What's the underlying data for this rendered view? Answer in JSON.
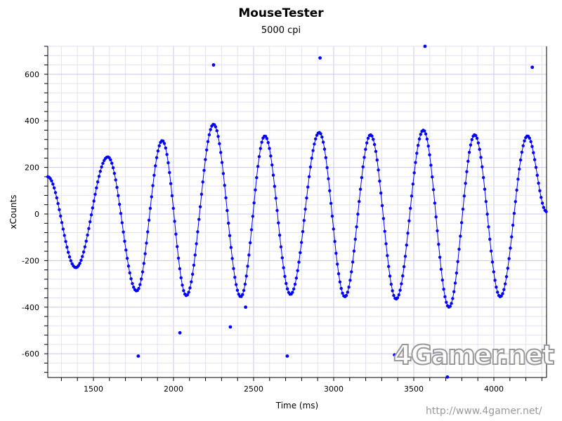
{
  "chart_data": {
    "type": "scatter",
    "title": "MouseTester",
    "subtitle": "5000 cpi",
    "xlabel": "Time (ms)",
    "ylabel": "xCounts",
    "xlim": [
      1215,
      4329
    ],
    "ylim": [
      -702,
      720
    ],
    "xticks": [
      1500,
      2000,
      2500,
      3000,
      3500,
      4000
    ],
    "yticks": [
      -600,
      -400,
      -200,
      0,
      200,
      400,
      600
    ],
    "grid": true,
    "series_color": "#0000ff",
    "waveform_extrema": [
      [
        1215,
        160
      ],
      [
        1390,
        -230
      ],
      [
        1590,
        245
      ],
      [
        1770,
        -330
      ],
      [
        1930,
        315
      ],
      [
        2080,
        -350
      ],
      [
        2250,
        385
      ],
      [
        2420,
        -355
      ],
      [
        2570,
        335
      ],
      [
        2730,
        -345
      ],
      [
        2910,
        350
      ],
      [
        3070,
        -355
      ],
      [
        3230,
        340
      ],
      [
        3390,
        -365
      ],
      [
        3560,
        360
      ],
      [
        3720,
        -400
      ],
      [
        3880,
        340
      ],
      [
        4040,
        -355
      ],
      [
        4210,
        335
      ],
      [
        4329,
        10
      ]
    ],
    "sample_interval_ms": 8,
    "outliers": [
      [
        1780,
        -610
      ],
      [
        2040,
        -510
      ],
      [
        2250,
        640
      ],
      [
        2355,
        -485
      ],
      [
        2450,
        -400
      ],
      [
        2710,
        -610
      ],
      [
        2915,
        670
      ],
      [
        3380,
        -605
      ],
      [
        3570,
        720
      ],
      [
        3710,
        -700
      ],
      [
        4240,
        630
      ]
    ]
  },
  "watermark": {
    "logo": "4Gamer.net",
    "url": "http://www.4gamer.net/"
  }
}
